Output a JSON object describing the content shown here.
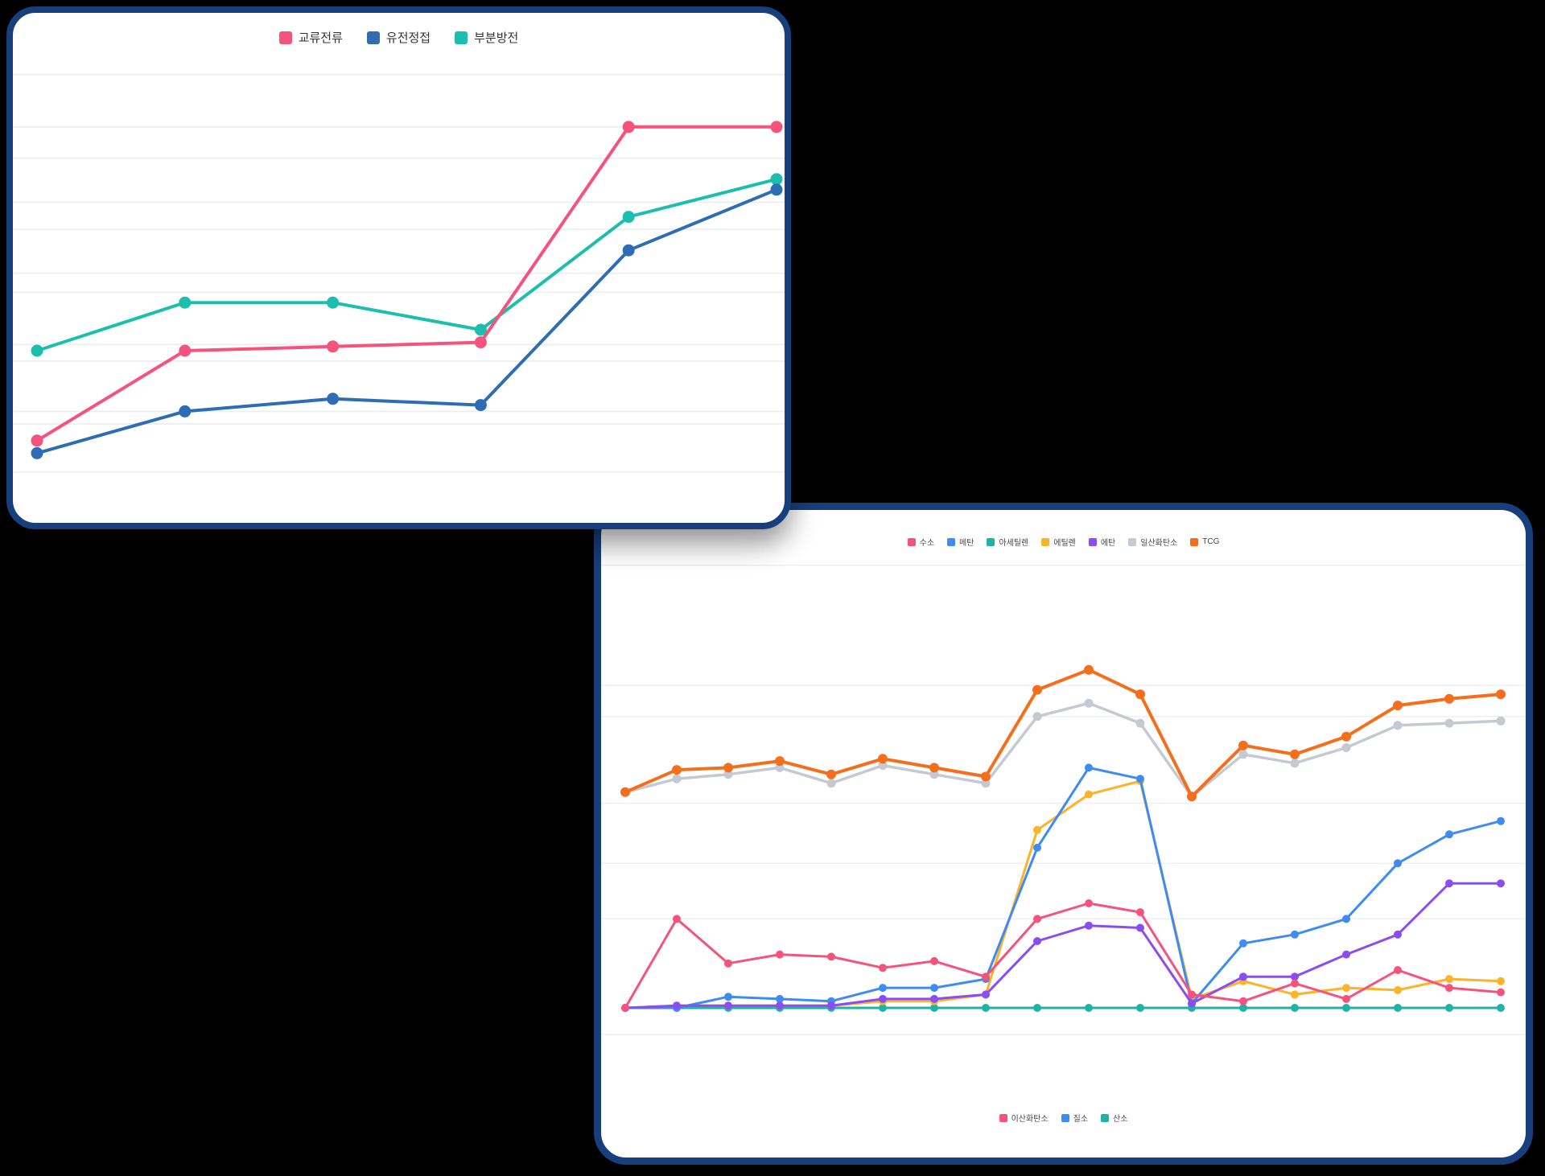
{
  "page": {
    "background": "#000000"
  },
  "colors": {
    "card_border": "#193E7C",
    "card_background": "#ffffff",
    "gridline": "#EEEFF2",
    "legend_text": "#333333"
  },
  "chart_data": [
    {
      "type": "line",
      "title": "",
      "legend_position": "top",
      "x_labels": [],
      "x_count": 6,
      "ylim": [
        0,
        105
      ],
      "grid": "on",
      "grid_values": [
        101,
        88.5,
        81,
        70.5,
        64,
        53.5,
        49,
        36.5,
        32.5,
        20.5,
        17.5,
        6
      ],
      "legend": [
        "교류전류",
        "유전정접",
        "부분방전"
      ],
      "series": [
        {
          "name": "교류전류",
          "color": "#F4537E",
          "values": [
            13.5,
            35,
            36,
            37,
            88.5,
            88.5
          ]
        },
        {
          "name": "유전정접",
          "color": "#2E6DB4",
          "values": [
            10.5,
            20.5,
            23.5,
            22,
            59,
            73.5
          ]
        },
        {
          "name": "부분방전",
          "color": "#1CBFAE",
          "values": [
            35,
            46.5,
            46.5,
            40,
            67,
            76
          ]
        }
      ]
    },
    {
      "type": "line",
      "title": "",
      "legend_position": "top-and-bottom",
      "x_labels": [],
      "x_count": 18,
      "ylim": [
        -10,
        105
      ],
      "grid": "on",
      "grid_values": [
        99.5,
        72.5,
        65.5,
        46,
        32.5,
        20,
        -6
      ],
      "legend_top": [
        "수소",
        "메탄",
        "아세틸렌",
        "에틸렌",
        "에탄",
        "일산화탄소",
        "TCG"
      ],
      "legend_bottom": [
        "이산화탄소",
        "질소",
        "산소"
      ],
      "legend_bottom_colors": [
        "#F4537E",
        "#3E8BF2",
        "#20B2A3"
      ],
      "series": [
        {
          "name": "수소",
          "color": "#F4537E",
          "values": [
            0,
            20,
            10,
            12,
            11.5,
            9,
            10.5,
            7,
            20,
            23.5,
            21.5,
            3,
            1.5,
            5.5,
            2,
            8.5,
            4.5,
            3.5
          ]
        },
        {
          "name": "메탄",
          "color": "#3E8BF2",
          "values": [
            0,
            0,
            2.5,
            2,
            1.5,
            4.5,
            4.5,
            6.5,
            36,
            54,
            51.5,
            1,
            14.5,
            16.5,
            20,
            32.5,
            39,
            42
          ]
        },
        {
          "name": "아세틸렌",
          "color": "#20B2A3",
          "values": [
            0,
            0,
            0,
            0,
            0,
            0,
            0,
            0,
            0,
            0,
            0,
            0,
            0,
            0,
            0,
            0,
            0,
            0
          ]
        },
        {
          "name": "에틸렌",
          "color": "#FBB32A",
          "values": [
            0,
            0.5,
            0.5,
            0.5,
            0.5,
            1.5,
            1.5,
            3,
            40,
            48,
            51,
            2,
            6,
            3,
            4.5,
            4,
            6.5,
            6
          ]
        },
        {
          "name": "에탄",
          "color": "#8A4DF0",
          "values": [
            0,
            0.5,
            0.5,
            0.5,
            0.5,
            2,
            2,
            3,
            15,
            18.5,
            18,
            1,
            7,
            7,
            12,
            16.5,
            28,
            28
          ]
        },
        {
          "name": "일산화탄소",
          "color": "#C5C9D2",
          "values": [
            48.5,
            51.5,
            52.5,
            54,
            50.5,
            54.5,
            52.5,
            50.5,
            65.5,
            68.5,
            64,
            47.5,
            57,
            55,
            58.5,
            63.5,
            64,
            64.5
          ]
        },
        {
          "name": "TCG",
          "color": "#F56E1C",
          "values": [
            48.5,
            53.5,
            54,
            55.5,
            52.5,
            56,
            54,
            52,
            71.5,
            76,
            70.5,
            47.5,
            59,
            57,
            61,
            68,
            69.5,
            70.5
          ]
        }
      ]
    }
  ]
}
